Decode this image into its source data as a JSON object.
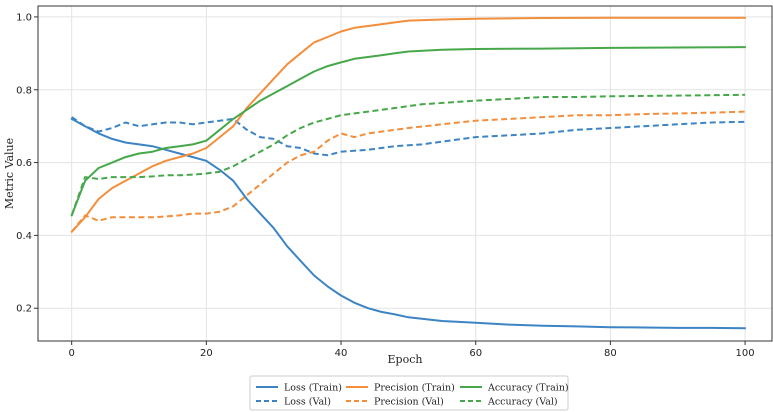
{
  "chart_data": {
    "type": "line",
    "title": "",
    "xlabel": "Epoch",
    "ylabel": "Metric Value",
    "xlim": [
      -5,
      104
    ],
    "ylim": [
      0.11,
      1.03
    ],
    "xticks": [
      0,
      20,
      40,
      60,
      80,
      100
    ],
    "yticks": [
      0.2,
      0.4,
      0.6,
      0.8,
      1.0
    ],
    "xtick_labels": [
      "0",
      "20",
      "40",
      "60",
      "80",
      "100"
    ],
    "ytick_labels": [
      "0.2",
      "0.4",
      "0.6",
      "0.8",
      "1.0"
    ],
    "grid": true,
    "legend_position": "bottom-center",
    "series": [
      {
        "name": "Loss (Train)",
        "color": "#3c84c4",
        "style": "solid",
        "points": [
          [
            0,
            0.72
          ],
          [
            2,
            0.7
          ],
          [
            4,
            0.68
          ],
          [
            6,
            0.665
          ],
          [
            8,
            0.655
          ],
          [
            10,
            0.65
          ],
          [
            12,
            0.645
          ],
          [
            14,
            0.635
          ],
          [
            16,
            0.625
          ],
          [
            18,
            0.615
          ],
          [
            20,
            0.605
          ],
          [
            22,
            0.58
          ],
          [
            24,
            0.55
          ],
          [
            26,
            0.5
          ],
          [
            28,
            0.46
          ],
          [
            30,
            0.42
          ],
          [
            32,
            0.37
          ],
          [
            34,
            0.33
          ],
          [
            36,
            0.29
          ],
          [
            38,
            0.26
          ],
          [
            40,
            0.235
          ],
          [
            42,
            0.215
          ],
          [
            44,
            0.2
          ],
          [
            46,
            0.19
          ],
          [
            48,
            0.183
          ],
          [
            50,
            0.175
          ],
          [
            55,
            0.165
          ],
          [
            60,
            0.16
          ],
          [
            65,
            0.155
          ],
          [
            70,
            0.152
          ],
          [
            75,
            0.15
          ],
          [
            80,
            0.148
          ],
          [
            85,
            0.147
          ],
          [
            90,
            0.146
          ],
          [
            95,
            0.146
          ],
          [
            100,
            0.145
          ]
        ]
      },
      {
        "name": "Loss (Val)",
        "color": "#3c84c4",
        "style": "dashed",
        "points": [
          [
            0,
            0.725
          ],
          [
            2,
            0.7
          ],
          [
            4,
            0.685
          ],
          [
            6,
            0.695
          ],
          [
            8,
            0.71
          ],
          [
            10,
            0.7
          ],
          [
            12,
            0.705
          ],
          [
            14,
            0.71
          ],
          [
            16,
            0.71
          ],
          [
            18,
            0.705
          ],
          [
            20,
            0.71
          ],
          [
            22,
            0.715
          ],
          [
            24,
            0.72
          ],
          [
            26,
            0.69
          ],
          [
            28,
            0.67
          ],
          [
            30,
            0.665
          ],
          [
            32,
            0.645
          ],
          [
            34,
            0.64
          ],
          [
            36,
            0.625
          ],
          [
            38,
            0.62
          ],
          [
            40,
            0.63
          ],
          [
            44,
            0.635
          ],
          [
            48,
            0.645
          ],
          [
            52,
            0.65
          ],
          [
            56,
            0.66
          ],
          [
            60,
            0.67
          ],
          [
            65,
            0.675
          ],
          [
            70,
            0.68
          ],
          [
            75,
            0.69
          ],
          [
            80,
            0.695
          ],
          [
            85,
            0.7
          ],
          [
            90,
            0.705
          ],
          [
            95,
            0.71
          ],
          [
            100,
            0.712
          ]
        ]
      },
      {
        "name": "Precision (Train)",
        "color": "#f28e3c",
        "style": "solid",
        "points": [
          [
            0,
            0.41
          ],
          [
            2,
            0.45
          ],
          [
            4,
            0.5
          ],
          [
            6,
            0.53
          ],
          [
            8,
            0.55
          ],
          [
            10,
            0.57
          ],
          [
            12,
            0.59
          ],
          [
            14,
            0.605
          ],
          [
            16,
            0.615
          ],
          [
            18,
            0.625
          ],
          [
            20,
            0.64
          ],
          [
            22,
            0.67
          ],
          [
            24,
            0.7
          ],
          [
            26,
            0.75
          ],
          [
            28,
            0.79
          ],
          [
            30,
            0.83
          ],
          [
            32,
            0.87
          ],
          [
            34,
            0.9
          ],
          [
            36,
            0.93
          ],
          [
            38,
            0.945
          ],
          [
            40,
            0.96
          ],
          [
            42,
            0.97
          ],
          [
            44,
            0.975
          ],
          [
            46,
            0.98
          ],
          [
            48,
            0.985
          ],
          [
            50,
            0.99
          ],
          [
            55,
            0.993
          ],
          [
            60,
            0.995
          ],
          [
            70,
            0.997
          ],
          [
            80,
            0.998
          ],
          [
            90,
            0.998
          ],
          [
            100,
            0.998
          ]
        ]
      },
      {
        "name": "Precision (Val)",
        "color": "#f28e3c",
        "style": "dashed",
        "points": [
          [
            0,
            0.41
          ],
          [
            2,
            0.455
          ],
          [
            4,
            0.44
          ],
          [
            6,
            0.45
          ],
          [
            8,
            0.45
          ],
          [
            10,
            0.45
          ],
          [
            12,
            0.45
          ],
          [
            14,
            0.452
          ],
          [
            16,
            0.455
          ],
          [
            18,
            0.46
          ],
          [
            20,
            0.46
          ],
          [
            22,
            0.465
          ],
          [
            24,
            0.48
          ],
          [
            26,
            0.51
          ],
          [
            28,
            0.54
          ],
          [
            30,
            0.57
          ],
          [
            32,
            0.6
          ],
          [
            34,
            0.62
          ],
          [
            36,
            0.63
          ],
          [
            38,
            0.66
          ],
          [
            40,
            0.68
          ],
          [
            42,
            0.67
          ],
          [
            44,
            0.68
          ],
          [
            46,
            0.685
          ],
          [
            48,
            0.69
          ],
          [
            50,
            0.695
          ],
          [
            55,
            0.705
          ],
          [
            60,
            0.715
          ],
          [
            65,
            0.72
          ],
          [
            70,
            0.725
          ],
          [
            75,
            0.73
          ],
          [
            80,
            0.73
          ],
          [
            85,
            0.733
          ],
          [
            90,
            0.735
          ],
          [
            95,
            0.737
          ],
          [
            100,
            0.74
          ]
        ]
      },
      {
        "name": "Accuracy (Train)",
        "color": "#46a84a",
        "style": "solid",
        "points": [
          [
            0,
            0.455
          ],
          [
            2,
            0.55
          ],
          [
            4,
            0.585
          ],
          [
            6,
            0.6
          ],
          [
            8,
            0.615
          ],
          [
            10,
            0.625
          ],
          [
            12,
            0.63
          ],
          [
            14,
            0.64
          ],
          [
            16,
            0.645
          ],
          [
            18,
            0.65
          ],
          [
            20,
            0.66
          ],
          [
            22,
            0.69
          ],
          [
            24,
            0.72
          ],
          [
            26,
            0.745
          ],
          [
            28,
            0.77
          ],
          [
            30,
            0.79
          ],
          [
            32,
            0.81
          ],
          [
            34,
            0.83
          ],
          [
            36,
            0.85
          ],
          [
            38,
            0.865
          ],
          [
            40,
            0.875
          ],
          [
            42,
            0.885
          ],
          [
            44,
            0.89
          ],
          [
            46,
            0.895
          ],
          [
            48,
            0.9
          ],
          [
            50,
            0.905
          ],
          [
            55,
            0.91
          ],
          [
            60,
            0.912
          ],
          [
            70,
            0.913
          ],
          [
            80,
            0.915
          ],
          [
            90,
            0.916
          ],
          [
            100,
            0.917
          ]
        ]
      },
      {
        "name": "Accuracy (Val)",
        "color": "#46a84a",
        "style": "dashed",
        "points": [
          [
            0,
            0.455
          ],
          [
            2,
            0.56
          ],
          [
            4,
            0.555
          ],
          [
            6,
            0.56
          ],
          [
            8,
            0.56
          ],
          [
            10,
            0.56
          ],
          [
            12,
            0.562
          ],
          [
            14,
            0.565
          ],
          [
            16,
            0.565
          ],
          [
            18,
            0.567
          ],
          [
            20,
            0.57
          ],
          [
            22,
            0.575
          ],
          [
            24,
            0.59
          ],
          [
            26,
            0.61
          ],
          [
            28,
            0.63
          ],
          [
            30,
            0.65
          ],
          [
            32,
            0.675
          ],
          [
            34,
            0.695
          ],
          [
            36,
            0.71
          ],
          [
            38,
            0.72
          ],
          [
            40,
            0.73
          ],
          [
            44,
            0.74
          ],
          [
            48,
            0.75
          ],
          [
            52,
            0.76
          ],
          [
            56,
            0.765
          ],
          [
            60,
            0.77
          ],
          [
            65,
            0.775
          ],
          [
            70,
            0.78
          ],
          [
            75,
            0.78
          ],
          [
            80,
            0.782
          ],
          [
            85,
            0.783
          ],
          [
            90,
            0.784
          ],
          [
            95,
            0.785
          ],
          [
            100,
            0.786
          ]
        ]
      }
    ]
  }
}
